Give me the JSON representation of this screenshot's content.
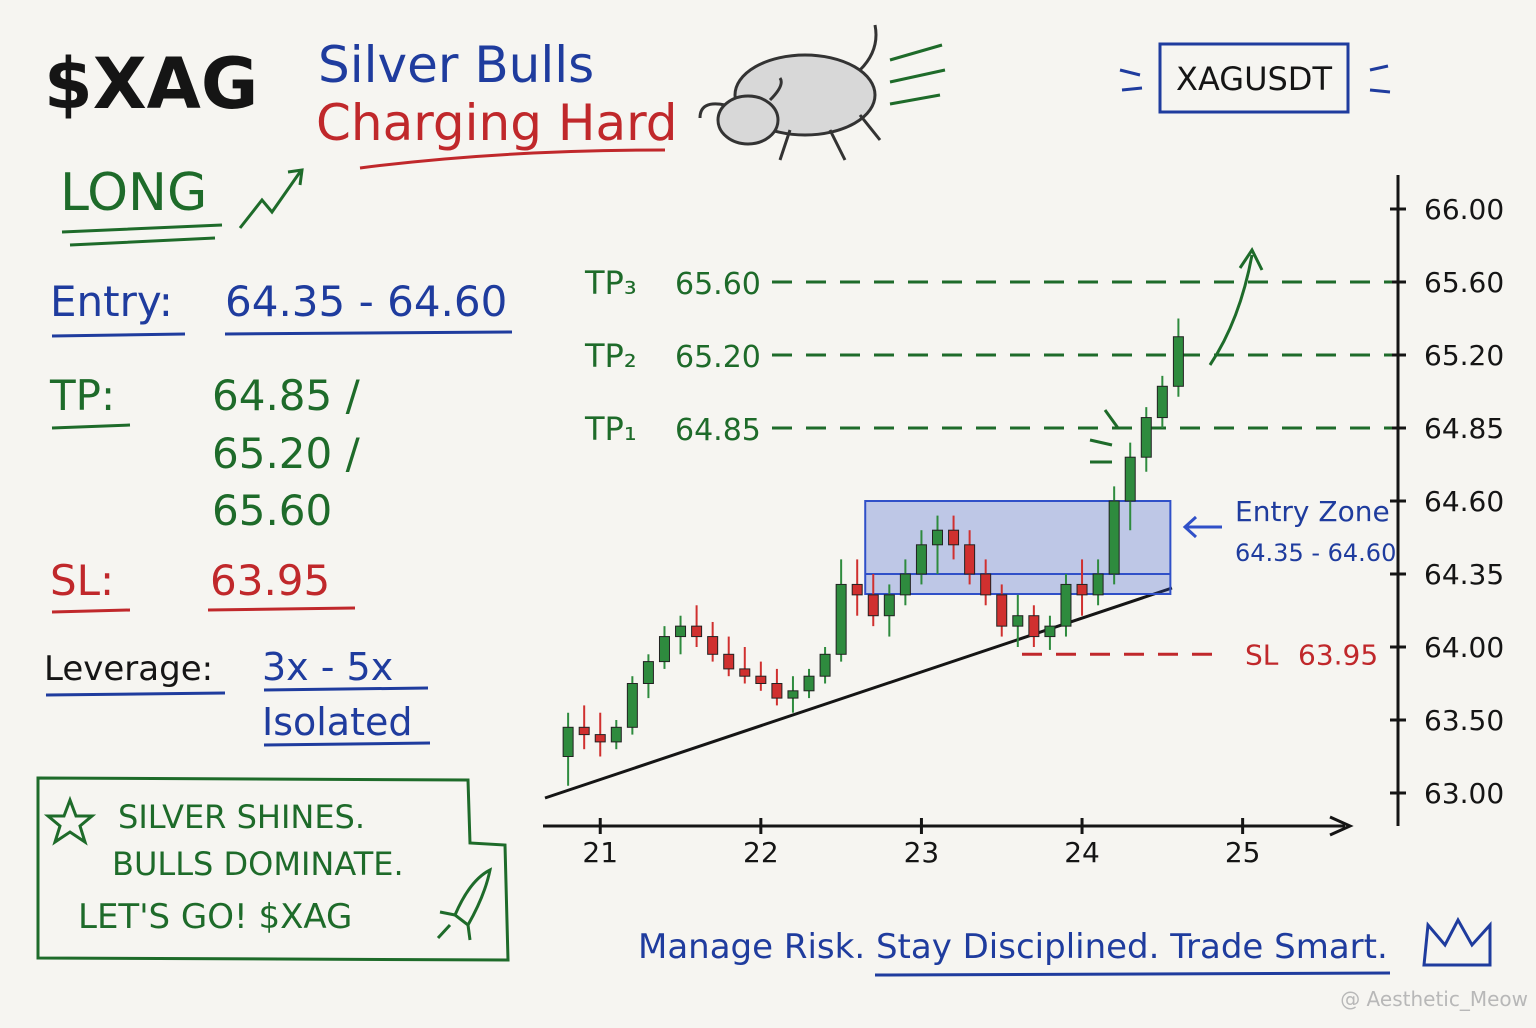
{
  "header": {
    "ticker": "$XAG",
    "title_line1": "Silver Bulls",
    "title_line2": "Charging Hard",
    "symbol": "XAGUSDT"
  },
  "signal": {
    "direction": "LONG",
    "entry_label": "Entry:",
    "entry": "64.35 - 64.60",
    "tp_label": "TP:",
    "tp": [
      "64.85 /",
      "65.20 /",
      "65.60"
    ],
    "sl_label": "SL:",
    "sl": "63.95",
    "leverage_label": "Leverage:",
    "leverage": "3x - 5x",
    "margin": "Isolated"
  },
  "callout": [
    "SILVER SHINES.",
    "BULLS DOMINATE.",
    "LET'S GO! $XAG"
  ],
  "footer": "Manage Risk. Stay Disciplined. Trade Smart.",
  "watermark": "@ Aesthetic_Meow",
  "chart_data": {
    "type": "candlestick",
    "x": [
      20.8,
      20.9,
      21.0,
      21.1,
      21.2,
      21.3,
      21.4,
      21.5,
      21.6,
      21.7,
      21.8,
      21.9,
      22.0,
      22.1,
      22.2,
      22.3,
      22.4,
      22.5,
      22.6,
      22.7,
      22.8,
      22.9,
      23.0,
      23.1,
      23.2,
      23.3,
      23.4,
      23.5,
      23.6,
      23.7,
      23.8,
      23.9,
      24.0,
      24.1,
      24.2,
      24.3,
      24.4,
      24.5,
      24.6
    ],
    "open": [
      63.25,
      63.45,
      63.4,
      63.35,
      63.45,
      63.75,
      63.9,
      64.05,
      64.1,
      64.05,
      63.95,
      63.85,
      63.8,
      63.75,
      63.65,
      63.7,
      63.8,
      63.95,
      64.3,
      64.25,
      64.15,
      64.25,
      64.35,
      64.45,
      64.5,
      64.45,
      64.35,
      64.25,
      64.1,
      64.15,
      64.05,
      64.1,
      64.3,
      64.25,
      64.35,
      64.6,
      64.75,
      64.9,
      65.05
    ],
    "high": [
      63.55,
      63.6,
      63.55,
      63.5,
      63.8,
      63.95,
      64.1,
      64.15,
      64.2,
      64.12,
      64.05,
      64.0,
      63.9,
      63.85,
      63.8,
      63.85,
      64.0,
      64.4,
      64.4,
      64.35,
      64.3,
      64.4,
      64.5,
      64.55,
      64.55,
      64.5,
      64.4,
      64.3,
      64.25,
      64.2,
      64.15,
      64.35,
      64.4,
      64.4,
      64.65,
      64.8,
      64.95,
      65.1,
      65.4
    ],
    "low": [
      63.05,
      63.3,
      63.25,
      63.3,
      63.4,
      63.65,
      63.85,
      63.95,
      64.0,
      63.9,
      63.8,
      63.75,
      63.7,
      63.6,
      63.55,
      63.65,
      63.75,
      63.9,
      64.15,
      64.1,
      64.05,
      64.2,
      64.3,
      64.35,
      64.4,
      64.3,
      64.2,
      64.05,
      64.0,
      64.0,
      63.98,
      64.05,
      64.15,
      64.2,
      64.3,
      64.5,
      64.7,
      64.85,
      65.0
    ],
    "close": [
      63.45,
      63.4,
      63.35,
      63.45,
      63.75,
      63.9,
      64.05,
      64.1,
      64.05,
      63.95,
      63.85,
      63.8,
      63.75,
      63.65,
      63.7,
      63.8,
      63.95,
      64.3,
      64.25,
      64.15,
      64.25,
      64.35,
      64.45,
      64.5,
      64.45,
      64.35,
      64.25,
      64.1,
      64.15,
      64.05,
      64.1,
      64.3,
      64.25,
      64.35,
      64.6,
      64.75,
      64.9,
      65.05,
      65.3
    ],
    "up_color": "#2e8b3e",
    "down_color": "#d0302f",
    "xlim": [
      20.6,
      25.6
    ],
    "xticks": [
      21,
      22,
      23,
      24,
      25
    ],
    "ylim": [
      63,
      66
    ],
    "yticks": [
      {
        "value": 63,
        "label": "63.00"
      },
      {
        "value": 63.5,
        "label": "63.50"
      },
      {
        "value": 64,
        "label": "64.00"
      },
      {
        "value": 64.35,
        "label": "64.35"
      },
      {
        "value": 64.6,
        "label": "64.60"
      },
      {
        "value": 64.85,
        "label": "64.85"
      },
      {
        "value": 65.2,
        "label": "65.20"
      },
      {
        "value": 65.6,
        "label": "65.60"
      },
      {
        "value": 66,
        "label": "66.00"
      }
    ],
    "targets": {
      "names": [
        "TP₁",
        "TP₂",
        "TP₃"
      ],
      "values": [
        64.85,
        65.2,
        65.6
      ],
      "value_labels": [
        "64.85",
        "65.20",
        "65.60"
      ],
      "color": "#1e6b2a"
    },
    "stop": {
      "name": "SL",
      "value": 63.95,
      "value_label": "63.95",
      "color": "#c0282b"
    },
    "entry_zone": {
      "label": "Entry Zone",
      "range_label": "64.35 - 64.60",
      "low": 64.35,
      "high": 64.6,
      "start": 22.65,
      "end": 24.55,
      "color": "#3050c8"
    }
  }
}
